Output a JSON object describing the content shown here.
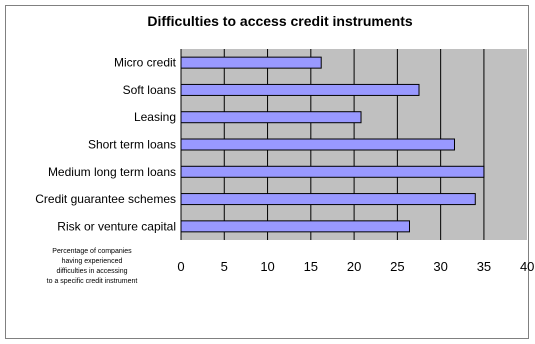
{
  "chart_data": {
    "type": "bar",
    "orientation": "horizontal",
    "title": "Difficulties to access credit instruments",
    "categories": [
      "Micro credit",
      "Soft loans",
      "Leasing",
      "Short term loans",
      "Medium long term loans",
      "Credit guarantee schemes",
      "Risk or venture capital"
    ],
    "values": [
      16.2,
      27.5,
      20.8,
      31.6,
      35.0,
      34.0,
      26.4
    ],
    "xlim": [
      0,
      40
    ],
    "xticks": [
      "0",
      "5",
      "10",
      "15",
      "20",
      "25",
      "30",
      "35",
      "40"
    ],
    "note_lines": [
      "Percentage of companies",
      "having experienced",
      "difficulties in accessing",
      "to a specific credit instrument"
    ],
    "grid": "vertical",
    "colors": {
      "bar_fill": "#9999ff",
      "plot_bg": "#c0c0c0",
      "grid": "#000000"
    }
  }
}
